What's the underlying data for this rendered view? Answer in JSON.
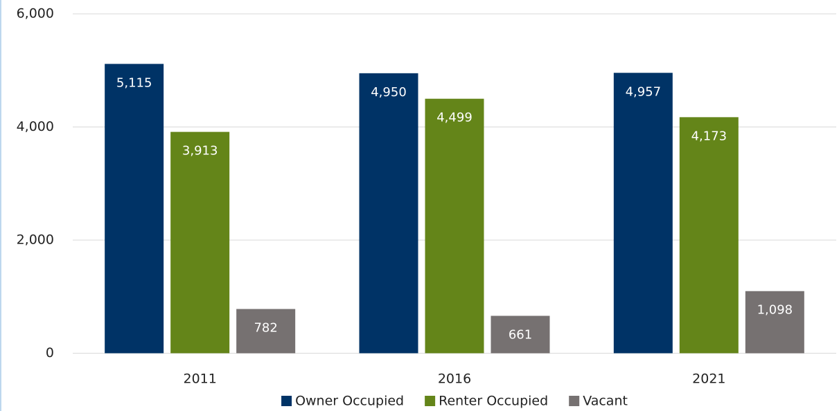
{
  "chart_data": {
    "type": "bar",
    "categories": [
      "2011",
      "2016",
      "2021"
    ],
    "series": [
      {
        "name": "Owner Occupied",
        "color": "#003366",
        "values": [
          5115,
          4950,
          4957
        ],
        "value_labels": [
          "5,115",
          "4,950",
          "4,957"
        ]
      },
      {
        "name": "Renter Occupied",
        "color": "#648519",
        "values": [
          3913,
          4499,
          4173
        ],
        "value_labels": [
          "3,913",
          "4,499",
          "4,173"
        ]
      },
      {
        "name": "Vacant",
        "color": "#767171",
        "values": [
          782,
          661,
          1098
        ],
        "value_labels": [
          "782",
          "661",
          "1,098"
        ]
      }
    ],
    "ylim": [
      0,
      6000
    ],
    "yticks": [
      0,
      {
        "value": 2000,
        "label": "2,000"
      },
      {
        "value": 4000,
        "label": "4,000"
      },
      {
        "value": 6000,
        "label": "6,000"
      }
    ],
    "grid": true,
    "legend": "bottom"
  }
}
